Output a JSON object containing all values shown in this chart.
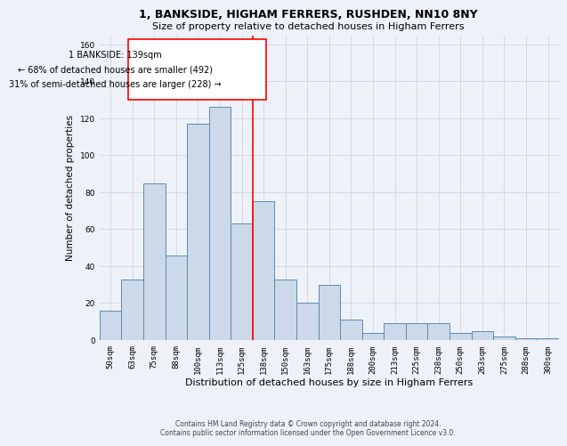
{
  "title": "1, BANKSIDE, HIGHAM FERRERS, RUSHDEN, NN10 8NY",
  "subtitle": "Size of property relative to detached houses in Higham Ferrers",
  "xlabel": "Distribution of detached houses by size in Higham Ferrers",
  "ylabel": "Number of detached properties",
  "footer_line1": "Contains HM Land Registry data © Crown copyright and database right 2024.",
  "footer_line2": "Contains public sector information licensed under the Open Government Licence v3.0.",
  "annotation_line1": "1 BANKSIDE: 139sqm",
  "annotation_line2": "← 68% of detached houses are smaller (492)",
  "annotation_line3": "31% of semi-detached houses are larger (228) →",
  "bar_color": "#ccd9e8",
  "bar_edge_color": "#5a8ab5",
  "marker_color": "red",
  "categories": [
    "50sqm",
    "63sqm",
    "75sqm",
    "88sqm",
    "100sqm",
    "113sqm",
    "125sqm",
    "138sqm",
    "150sqm",
    "163sqm",
    "175sqm",
    "188sqm",
    "200sqm",
    "213sqm",
    "225sqm",
    "238sqm",
    "250sqm",
    "263sqm",
    "275sqm",
    "288sqm",
    "300sqm"
  ],
  "values": [
    16,
    33,
    85,
    46,
    117,
    126,
    63,
    75,
    33,
    20,
    30,
    11,
    4,
    9,
    9,
    9,
    4,
    5,
    2,
    1,
    1
  ],
  "ylim": [
    0,
    165
  ],
  "yticks": [
    0,
    20,
    40,
    60,
    80,
    100,
    120,
    140,
    160
  ],
  "grid_color": "#d0d8e8",
  "bg_color": "#eef2f8",
  "bar_width": 1.0,
  "title_fontsize": 9,
  "subtitle_fontsize": 8,
  "ylabel_fontsize": 7.5,
  "xlabel_fontsize": 8,
  "tick_fontsize": 6.5,
  "annotation_fontsize": 7,
  "footer_fontsize": 5.5
}
